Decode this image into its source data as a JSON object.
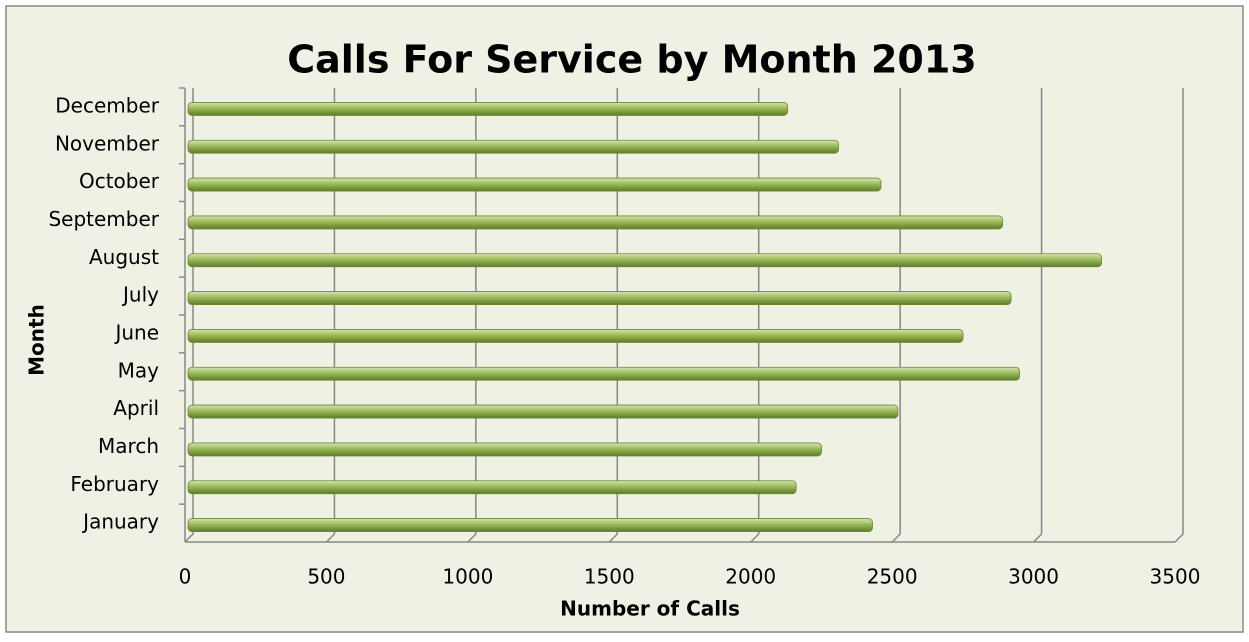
{
  "chart_data": {
    "type": "barh",
    "title": "Calls For Service by Month 2013",
    "xlabel": "Number of Calls",
    "ylabel": "Month",
    "categories": [
      "January",
      "February",
      "March",
      "April",
      "May",
      "June",
      "July",
      "August",
      "September",
      "October",
      "November",
      "December"
    ],
    "values": [
      2420,
      2150,
      2240,
      2510,
      2940,
      2740,
      2910,
      3230,
      2880,
      2450,
      2300,
      2120
    ],
    "color": "#9bbb59",
    "xlim": [
      0,
      3500
    ],
    "xticks": [
      0,
      500,
      1000,
      1500,
      2000,
      2500,
      3000,
      3500
    ],
    "grid": true
  }
}
